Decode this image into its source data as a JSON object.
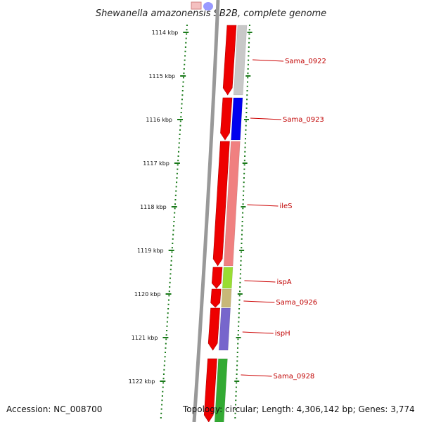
{
  "title": "Shewanella amazonensis SB2B, complete genome",
  "accession": "Accession: NC_008700",
  "summary": "Topology: circular; Length: 4,306,142 bp; Genes: 3,774",
  "ticks": [
    "1114 kbp",
    "1115 kbp",
    "1116 kbp",
    "1117 kbp",
    "1118 kbp",
    "1119 kbp",
    "1120 kbp",
    "1121 kbp",
    "1122 kbp"
  ],
  "genes": [
    "Sama_0922",
    "Sama_0923",
    "ileS",
    "ispA",
    "Sama_0926",
    "ispH",
    "Sama_0928"
  ],
  "colors": {
    "cds": "#ee0000",
    "backbone": "#888888",
    "tick": "#1a7a1a",
    "label": "#cc0000",
    "gene_fills": [
      "#c8c8c8",
      "#0000ee",
      "#f08080",
      "#99dd33",
      "#c8b878",
      "#7766cc",
      "#33aa33"
    ]
  }
}
